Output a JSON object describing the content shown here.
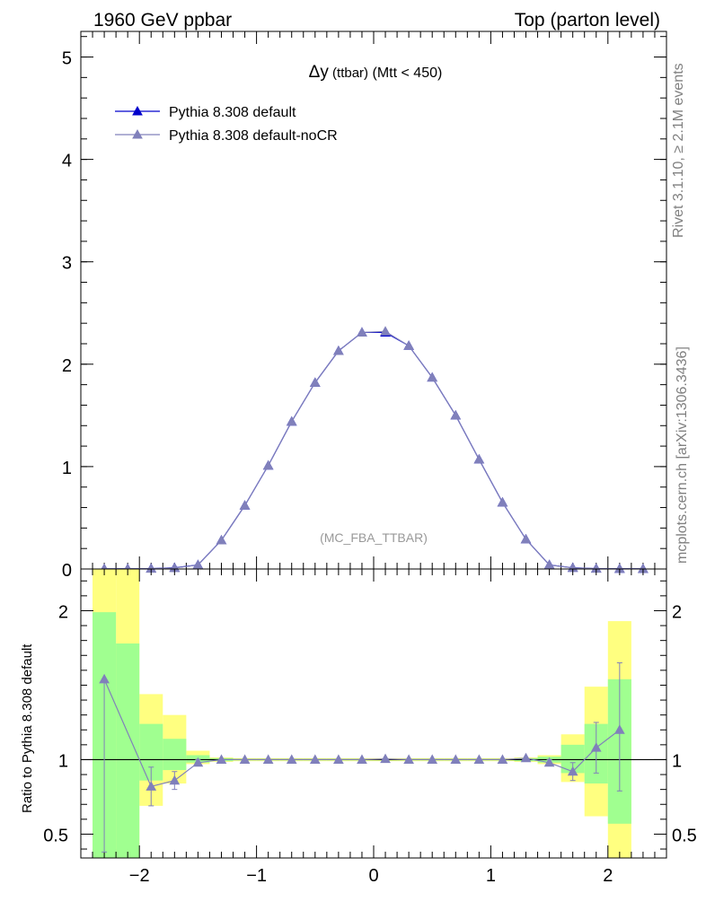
{
  "header": {
    "left": "1960 GeV ppbar",
    "right": "Top (parton level)"
  },
  "side": {
    "rivet": "Rivet 3.1.10, ≥ 2.1M events",
    "mcplots": "mcplots.cern.ch [arXiv:1306.3436]"
  },
  "chart_data": [
    {
      "type": "line",
      "title_main": "Δy",
      "title_small": " (ttbar)",
      "title_rest": " (Mtt < 450)",
      "annotation": "(MC_FBA_TTBAR)",
      "xlabel": "",
      "ylabel": "",
      "xlim": [
        -2.5,
        2.5
      ],
      "ylim": [
        0,
        5.25
      ],
      "yticks": [
        {
          "v": 0,
          "label": "0"
        },
        {
          "v": 1,
          "label": "1"
        },
        {
          "v": 2,
          "label": "2"
        },
        {
          "v": 3,
          "label": "3"
        },
        {
          "v": 4,
          "label": "4"
        },
        {
          "v": 5,
          "label": "5"
        }
      ],
      "legend_position": "top-left",
      "x": [
        -2.3,
        -2.1,
        -1.9,
        -1.7,
        -1.5,
        -1.3,
        -1.1,
        -0.9,
        -0.7,
        -0.5,
        -0.3,
        -0.1,
        0.1,
        0.3,
        0.5,
        0.7,
        0.9,
        1.1,
        1.3,
        1.5,
        1.7,
        1.9,
        2.1,
        2.3
      ],
      "series": [
        {
          "name": "Pythia 8.308 default",
          "color": "#0000cc",
          "marker_fill": "#0000cc",
          "values": [
            0.001,
            0.002,
            0.004,
            0.012,
            0.04,
            0.28,
            0.62,
            1.01,
            1.44,
            1.82,
            2.13,
            2.31,
            2.31,
            2.18,
            1.87,
            1.5,
            1.07,
            0.65,
            0.29,
            0.04,
            0.012,
            0.004,
            0.002,
            0.001
          ]
        },
        {
          "name": "Pythia 8.308 default-noCR",
          "color": "#8080bb",
          "marker_fill": "#8080bb",
          "values": [
            0.0015,
            0.002,
            0.0033,
            0.0103,
            0.039,
            0.28,
            0.62,
            1.01,
            1.44,
            1.82,
            2.13,
            2.31,
            2.32,
            2.18,
            1.87,
            1.5,
            1.07,
            0.65,
            0.29,
            0.039,
            0.011,
            0.0037,
            0.0024,
            0.0012
          ]
        }
      ]
    },
    {
      "type": "line",
      "ylabel": "Ratio to Pythia 8.308 default",
      "xlim": [
        -2.5,
        2.5
      ],
      "ylim": [
        0.34,
        2.28
      ],
      "yticks": [
        {
          "v": 0.5,
          "label": "0.5"
        },
        {
          "v": 1,
          "label": "1"
        },
        {
          "v": 2,
          "label": "2"
        }
      ],
      "xticks": [
        {
          "v": -2,
          "label": "−2"
        },
        {
          "v": -1,
          "label": "−1"
        },
        {
          "v": 0,
          "label": "0"
        },
        {
          "v": 1,
          "label": "1"
        },
        {
          "v": 2,
          "label": "2"
        }
      ],
      "reference": 1,
      "band_edges": [
        -2.4,
        -2.2,
        -2.0,
        -1.8,
        -1.6,
        -1.4,
        -1.2,
        -1.0,
        -0.8,
        -0.6,
        -0.4,
        -0.2,
        0.0,
        0.2,
        0.4,
        0.6,
        0.8,
        1.0,
        1.2,
        1.4,
        1.6,
        1.8,
        2.0,
        2.2
      ],
      "band_outer": {
        "color": "#ffff80",
        "low": [
          0.34,
          0.34,
          0.69,
          0.84,
          0.97,
          0.985,
          0.99,
          0.99,
          0.99,
          0.99,
          0.99,
          0.99,
          0.99,
          0.99,
          0.99,
          0.99,
          0.99,
          0.99,
          0.985,
          0.97,
          0.85,
          0.62,
          0.34
        ],
        "high": [
          2.28,
          2.28,
          1.44,
          1.3,
          1.06,
          1.015,
          1.01,
          1.01,
          1.01,
          1.01,
          1.01,
          1.01,
          1.01,
          1.01,
          1.01,
          1.01,
          1.01,
          1.01,
          1.015,
          1.03,
          1.17,
          1.49,
          1.93
        ]
      },
      "band_inner": {
        "color": "#a0ff90",
        "low": [
          0.34,
          0.34,
          0.86,
          0.93,
          0.98,
          0.99,
          0.995,
          0.995,
          0.995,
          0.995,
          0.995,
          0.995,
          0.995,
          0.995,
          0.995,
          0.995,
          0.995,
          0.995,
          0.99,
          0.98,
          0.91,
          0.84,
          0.57
        ],
        "high": [
          1.99,
          1.78,
          1.24,
          1.14,
          1.03,
          1.01,
          1.005,
          1.005,
          1.005,
          1.005,
          1.005,
          1.005,
          1.005,
          1.005,
          1.005,
          1.005,
          1.005,
          1.005,
          1.01,
          1.02,
          1.1,
          1.24,
          1.54
        ]
      },
      "series": [
        {
          "name": "Pythia 8.308 default-noCR",
          "color": "#8080bb",
          "x": [
            -2.3,
            -1.9,
            -1.7,
            -1.5,
            -1.3,
            -1.1,
            -0.9,
            -0.7,
            -0.5,
            -0.3,
            -0.1,
            0.1,
            0.3,
            0.5,
            0.7,
            0.9,
            1.1,
            1.3,
            1.5,
            1.7,
            1.9,
            2.1
          ],
          "values": [
            1.54,
            0.82,
            0.86,
            0.98,
            1.0,
            1.0,
            1.0,
            1.0,
            1.0,
            1.0,
            1.0,
            1.005,
            1.0,
            1.0,
            1.0,
            1.0,
            1.0,
            1.01,
            0.98,
            0.92,
            1.08,
            1.2
          ],
          "err_low": [
            1.16,
            0.13,
            0.06,
            0.02,
            0.01,
            0.005,
            0.005,
            0.005,
            0.005,
            0.005,
            0.005,
            0.005,
            0.005,
            0.005,
            0.005,
            0.005,
            0.005,
            0.005,
            0.02,
            0.06,
            0.17,
            0.41
          ],
          "err_high": [
            0.0,
            0.13,
            0.06,
            0.02,
            0.01,
            0.005,
            0.005,
            0.005,
            0.005,
            0.005,
            0.005,
            0.005,
            0.005,
            0.005,
            0.005,
            0.005,
            0.005,
            0.005,
            0.02,
            0.06,
            0.17,
            0.45
          ]
        }
      ]
    }
  ]
}
